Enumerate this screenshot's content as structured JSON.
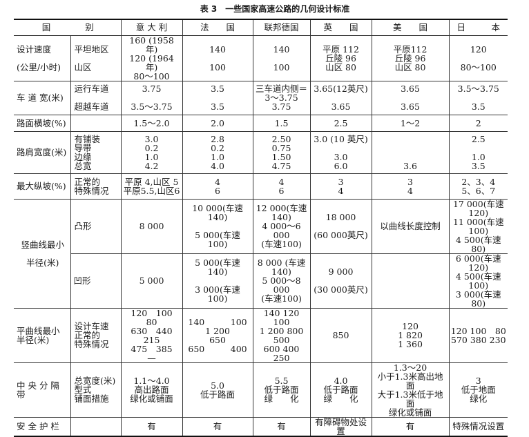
{
  "title": "表 3　一些国家高速公路的几何设计标准",
  "header": {
    "category": "国　　　　别",
    "countries": [
      "意 大 利",
      "法　　国",
      "联邦德国",
      "英　　国",
      "美　　国",
      "日　　　本"
    ]
  },
  "rows": [
    {
      "label": "设计速度\n\n(公里/小时)",
      "sub": "平坦地区\n\n山区",
      "values": [
        "160 (1958 年)\n120 (1964 年)\n80～100",
        "140\n\n100",
        "140\n\n100",
        "平原 112\n丘陵 96\n山区 80",
        "平原112\n丘陵 96\n山区 80",
        "120\n\n80～100"
      ]
    },
    {
      "label": "车 道 宽(米)",
      "sub": "运行车道\n\n超越车道",
      "values": [
        "3.75\n\n3.5～3.75",
        "3.5\n\n3.5",
        "三车道内侧＝\n3～3.75\n3.75",
        "3.65(12英尺)\n\n3.65",
        "3.65\n\n3.65",
        "3.5～3.75\n\n3.5"
      ]
    },
    {
      "label": "路面横坡(%)",
      "sub": "",
      "values": [
        "1.5～2.0",
        "2.0",
        "1.5",
        "2.5",
        "1～2",
        "2"
      ]
    },
    {
      "label": "路肩宽度(米)",
      "sub": "有铺装\n导带\n边缘\n总宽",
      "values": [
        "3.0\n0.2\n1.0\n4.2",
        "2.8\n0.2\n1.0\n4.0",
        "2.50\n0.75\n1.50\n4.75",
        "3.0 (10 英尺)\n\n3.0\n6.0",
        "\n\n\n3.6",
        "2.5\n\n1.0\n3.5"
      ]
    },
    {
      "label": "最大纵坡(%)",
      "sub": "正常的\n特殊情况",
      "values": [
        "平原 4,山区 5\n平原5.5,山区6",
        "4\n6",
        "4\n6",
        "3\n4",
        "3\n4",
        "2、3、4\n5、6、7"
      ]
    },
    {
      "label": "竖曲线最小\n\n半径(米)",
      "sub": "凸形",
      "values": [
        "8 000",
        "10 000(车速 140)\n\n5 000(车速 100)",
        "12 000(车速\n140)\n4 000～6 000\n(车速100)",
        "18 000\n\n(60 000英尺)",
        "以曲线长度控制",
        "17 000(车速 120)\n11 000(车速 100)\n4 500(车速　80)"
      ]
    },
    {
      "label": "",
      "sub": "凹形",
      "values": [
        "5 000",
        "5 000(车速 140)\n\n3 000(车速 100)",
        "8 000 (车速\n140)\n5 000～8 000\n(车速100)",
        "9 000\n\n(30 000英尺)",
        "",
        "6 000(车速 120)\n4 500(车速 100)\n3 000(车速　80)"
      ]
    },
    {
      "label": "平曲线最小\n半径(米)",
      "sub": "设计车速\n正常的\n特殊情况",
      "values": [
        "120　100　80\n630　440　215\n475　385　—",
        "140　　　100\n1 200　　　650\n650　　　400",
        "140 120 100\n1 200 800 500\n600 400 250",
        "850",
        "120\n1 820\n1 360",
        "120 100　80\n570 380 230\n"
      ]
    },
    {
      "label": "中 央 分 隔 带",
      "sub": "总宽度(米)\n型式\n铺面措施",
      "values": [
        "1.1～4.0\n高出路面\n绿化或铺面",
        "5.0\n低于路面\n",
        "5.5\n低于路面\n绿　　化",
        "4.0\n低于路面\n绿　　化",
        "1.3～20\n小于1.3米高出地面\n大于1.3米低于地面\n绿化或铺面",
        "3\n低于地面\n绿化"
      ]
    },
    {
      "label": "安 全 护 栏",
      "sub": "",
      "values": [
        "有",
        "有",
        "有",
        "有障碍物处设置",
        "有",
        "特殊情况设置"
      ]
    }
  ]
}
